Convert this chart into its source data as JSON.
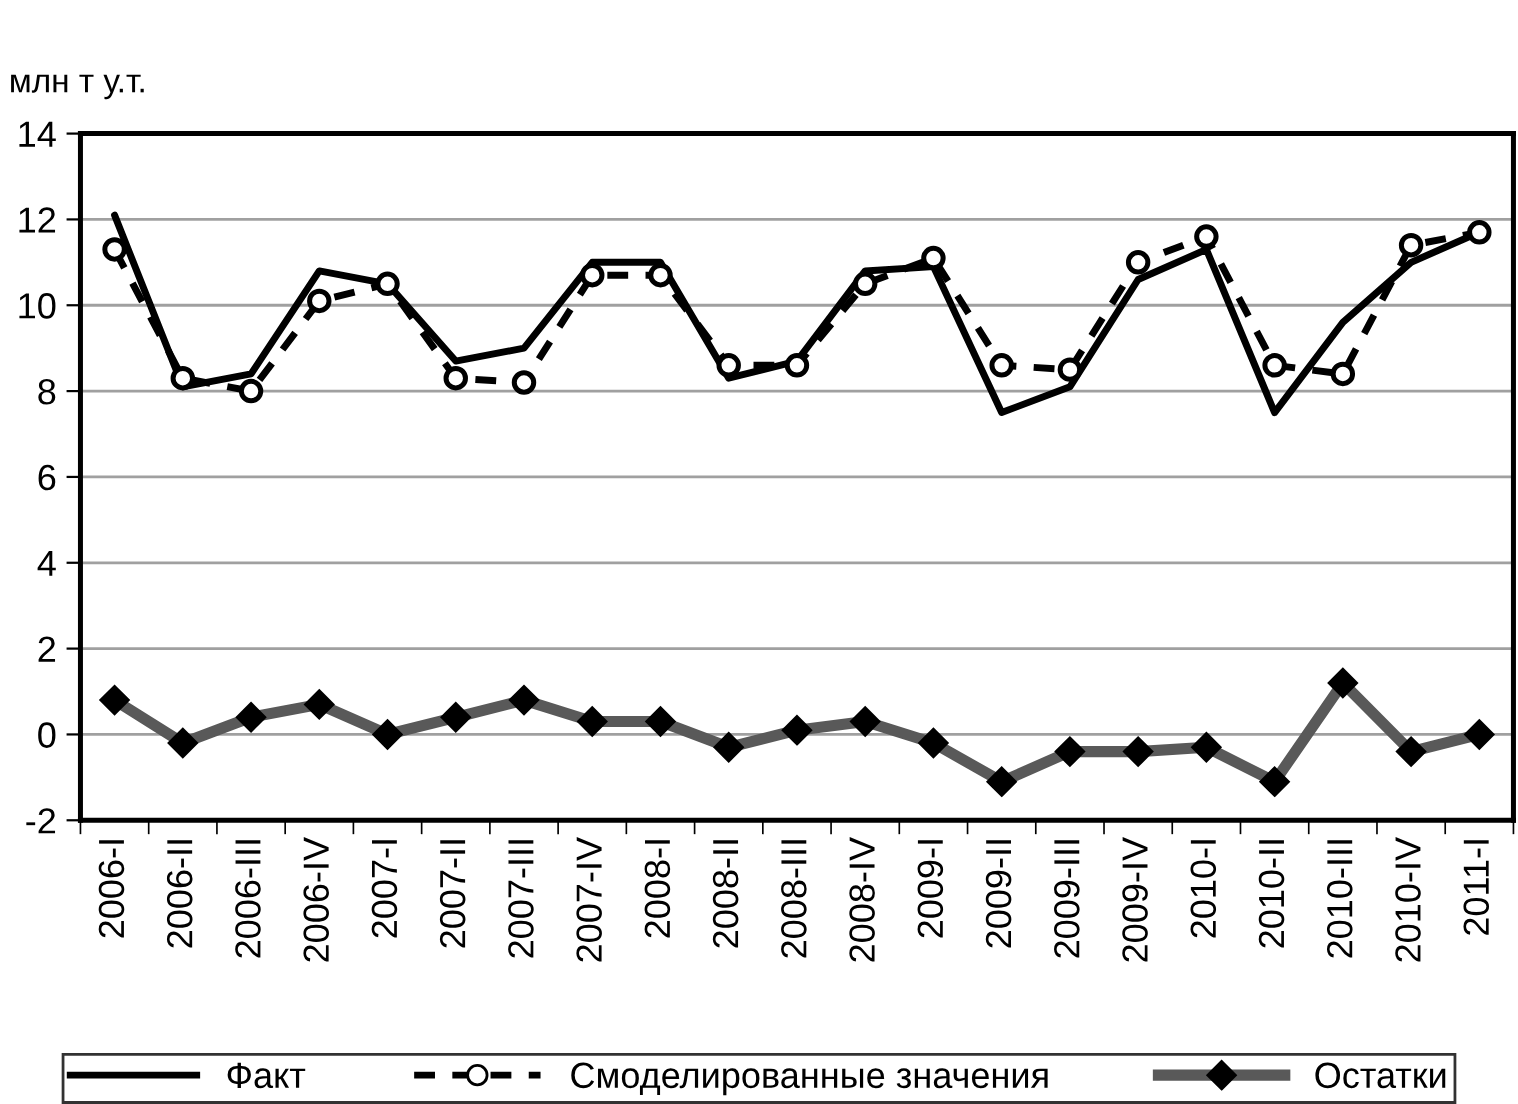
{
  "chart_data": {
    "type": "line",
    "ylabel": "млн т у.т.",
    "categories": [
      "2006-I",
      "2006-II",
      "2006-III",
      "2006-IV",
      "2007-I",
      "2007-II",
      "2007-III",
      "2007-IV",
      "2008-I",
      "2008-II",
      "2008-III",
      "2008-IV",
      "2009-I",
      "2009-II",
      "2009-III",
      "2009-IV",
      "2010-I",
      "2010-II",
      "2010-III",
      "2010-IV",
      "2011-I"
    ],
    "series": [
      {
        "name": "Факт",
        "color": "#000000",
        "line_style": "solid",
        "marker": "none",
        "values": [
          12.1,
          8.1,
          8.4,
          10.8,
          10.5,
          8.7,
          9.0,
          11.0,
          11.0,
          8.3,
          8.7,
          10.8,
          10.9,
          7.5,
          8.1,
          10.6,
          11.3,
          7.5,
          9.6,
          11.0,
          11.7
        ]
      },
      {
        "name": "Смоделированные значения",
        "color": "#000000",
        "line_style": "dashed",
        "marker": "circle",
        "values": [
          11.3,
          8.3,
          8.0,
          10.1,
          10.5,
          8.3,
          8.2,
          10.7,
          10.7,
          8.6,
          8.6,
          10.5,
          11.1,
          8.6,
          8.5,
          11.0,
          11.6,
          8.6,
          8.4,
          11.4,
          11.7
        ]
      },
      {
        "name": "Остатки",
        "color": "#595959",
        "line_style": "solid",
        "marker": "diamond",
        "values": [
          0.8,
          -0.2,
          0.4,
          0.7,
          0.0,
          0.4,
          0.8,
          0.3,
          0.3,
          -0.3,
          0.1,
          0.3,
          -0.2,
          -1.1,
          -0.4,
          -0.4,
          -0.3,
          -1.1,
          1.2,
          -0.4,
          0.0
        ]
      }
    ],
    "ylim": [
      -2,
      14
    ],
    "yticks": [
      -2,
      0,
      2,
      4,
      6,
      8,
      10,
      12,
      14
    ],
    "grid": "y",
    "legend": "bottom"
  }
}
